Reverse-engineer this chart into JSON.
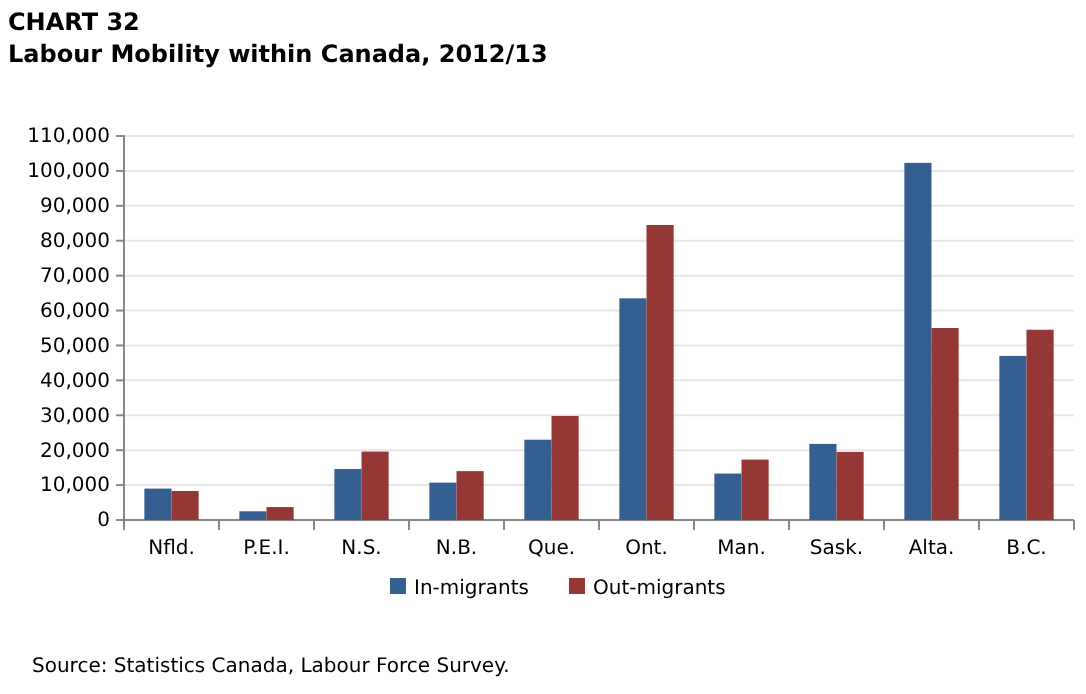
{
  "chart_data": {
    "type": "bar",
    "title": "CHART 32",
    "subtitle": "Labour Mobility within Canada, 2012/13",
    "categories": [
      "Nfld.",
      "P.E.I.",
      "N.S.",
      "N.B.",
      "Que.",
      "Ont.",
      "Man.",
      "Sask.",
      "Alta.",
      "B.C."
    ],
    "series": [
      {
        "name": "In-migrants",
        "color": "#365f91",
        "values": [
          9000,
          2500,
          14600,
          10700,
          23000,
          63500,
          13300,
          21800,
          102300,
          47000
        ]
      },
      {
        "name": "Out-migrants",
        "color": "#953735",
        "values": [
          8300,
          3700,
          19600,
          14000,
          29800,
          84500,
          17300,
          19500,
          55000,
          54500
        ]
      }
    ],
    "ylim": [
      0,
      110000
    ],
    "yticks": [
      {
        "value": 0,
        "label": "0"
      },
      {
        "value": 10000,
        "label": "10,000"
      },
      {
        "value": 20000,
        "label": "20,000"
      },
      {
        "value": 30000,
        "label": "30,000"
      },
      {
        "value": 40000,
        "label": "40,000"
      },
      {
        "value": 50000,
        "label": "50,000"
      },
      {
        "value": 60000,
        "label": "60,000"
      },
      {
        "value": 70000,
        "label": "70,000"
      },
      {
        "value": 80000,
        "label": "80,000"
      },
      {
        "value": 90000,
        "label": "90,000"
      },
      {
        "value": 100000,
        "label": "100,000"
      },
      {
        "value": 110000,
        "label": "110,000"
      }
    ],
    "grid": "y",
    "legend": "bottom",
    "annotations": [
      "Source: Statistics Canada, Labour Force Survey."
    ]
  }
}
